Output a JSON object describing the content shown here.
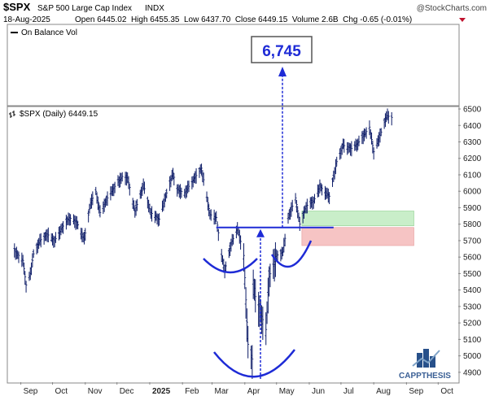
{
  "header": {
    "symbol": "$SPX",
    "name": "S&P 500 Large Cap Index",
    "exchange": "INDX",
    "date": "18-Aug-2025",
    "quote": "Open 6445.02  High 6455.35  Low 6437.70  Close 6449.15  Volume 2.6B  Chg -0.65 (-0.01%)",
    "copyright": "@StockCharts.com"
  },
  "upper_panel": {
    "legend": "On Balance Vol"
  },
  "price_panel": {
    "legend": "$SPX (Daily) 6449.15"
  },
  "annotation": {
    "target": "6,745"
  },
  "logo": {
    "text": "CAPPTHESIS"
  },
  "colors": {
    "price": "#0b1a66",
    "pattern": "#1e2bd6",
    "support_zone": "#c9eec9",
    "resistance_zone": "#f6c4c4",
    "target_box_border": "#555555",
    "arrow": "#1e2bd6"
  },
  "chart_data": {
    "type": "ohlc",
    "title": "$SPX (Daily) 6449.15",
    "x_tick_labels": [
      "Sep",
      "Oct",
      "Nov",
      "Dec",
      "2025",
      "Feb",
      "Mar",
      "Apr",
      "May",
      "Jun",
      "Jul",
      "Aug",
      "Sep",
      "Oct"
    ],
    "y_tick_labels": [
      "4900",
      "5000",
      "5100",
      "5200",
      "5300",
      "5400",
      "5500",
      "5600",
      "5700",
      "5800",
      "5900",
      "6000",
      "6100",
      "6200",
      "6300",
      "6400",
      "6500"
    ],
    "ylim": [
      4840,
      6510
    ],
    "neckline": 5780,
    "target": 6745,
    "zones": [
      {
        "label": "upper",
        "from": 5790,
        "to": 5880
      },
      {
        "label": "lower",
        "from": 5670,
        "to": 5780
      }
    ],
    "series": [
      {
        "name": "$SPX",
        "points": [
          [
            "2024-08-26",
            5640
          ],
          [
            "2024-09-03",
            5580
          ],
          [
            "2024-09-06",
            5430
          ],
          [
            "2024-09-10",
            5500
          ],
          [
            "2024-09-13",
            5620
          ],
          [
            "2024-09-19",
            5700
          ],
          [
            "2024-09-26",
            5740
          ],
          [
            "2024-10-03",
            5700
          ],
          [
            "2024-10-10",
            5780
          ],
          [
            "2024-10-17",
            5840
          ],
          [
            "2024-10-24",
            5810
          ],
          [
            "2024-10-31",
            5710
          ],
          [
            "2024-11-06",
            5930
          ],
          [
            "2024-11-11",
            6000
          ],
          [
            "2024-11-15",
            5870
          ],
          [
            "2024-11-22",
            5960
          ],
          [
            "2024-11-29",
            6030
          ],
          [
            "2024-12-06",
            6090
          ],
          [
            "2024-12-11",
            6080
          ],
          [
            "2024-12-18",
            5880
          ],
          [
            "2024-12-26",
            6040
          ],
          [
            "2025-01-02",
            5870
          ],
          [
            "2025-01-10",
            5830
          ],
          [
            "2025-01-15",
            5950
          ],
          [
            "2025-01-23",
            6110
          ],
          [
            "2025-01-27",
            6010
          ],
          [
            "2025-02-03",
            5990
          ],
          [
            "2025-02-10",
            6060
          ],
          [
            "2025-02-19",
            6140
          ],
          [
            "2025-02-27",
            5860
          ],
          [
            "2025-03-05",
            5840
          ],
          [
            "2025-03-10",
            5610
          ],
          [
            "2025-03-13",
            5520
          ],
          [
            "2025-03-19",
            5680
          ],
          [
            "2025-03-25",
            5780
          ],
          [
            "2025-03-31",
            5610
          ],
          [
            "2025-04-04",
            5070
          ],
          [
            "2025-04-08",
            4980
          ],
          [
            "2025-04-09",
            5460
          ],
          [
            "2025-04-11",
            5360
          ],
          [
            "2025-04-21",
            5160
          ],
          [
            "2025-04-24",
            5480
          ],
          [
            "2025-05-01",
            5610
          ],
          [
            "2025-05-07",
            5630
          ],
          [
            "2025-05-12",
            5840
          ],
          [
            "2025-05-19",
            5960
          ],
          [
            "2025-05-23",
            5800
          ],
          [
            "2025-05-29",
            5910
          ],
          [
            "2025-06-05",
            5940
          ],
          [
            "2025-06-11",
            6030
          ],
          [
            "2025-06-20",
            5970
          ],
          [
            "2025-06-27",
            6180
          ],
          [
            "2025-07-03",
            6280
          ],
          [
            "2025-07-11",
            6260
          ],
          [
            "2025-07-18",
            6300
          ],
          [
            "2025-07-28",
            6390
          ],
          [
            "2025-08-01",
            6240
          ],
          [
            "2025-08-07",
            6340
          ],
          [
            "2025-08-13",
            6460
          ],
          [
            "2025-08-18",
            6449
          ]
        ]
      }
    ],
    "obv_note": "On Balance Vol line (upper panel) is drawn near the top edge"
  }
}
